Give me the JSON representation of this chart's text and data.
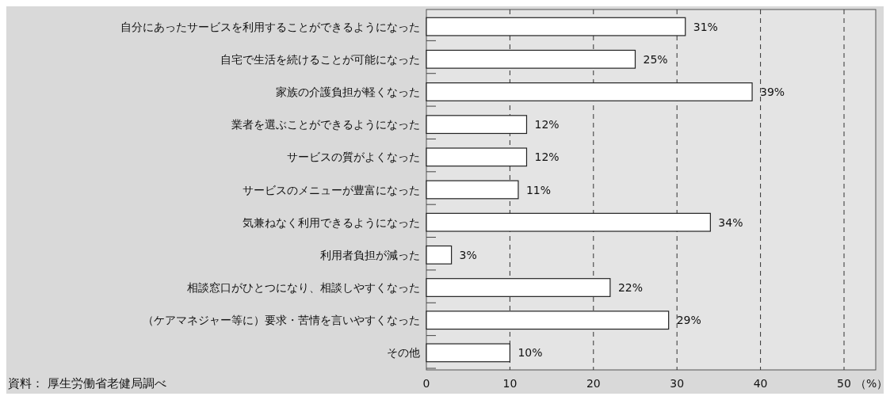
{
  "chart_data": {
    "type": "bar",
    "orientation": "horizontal",
    "categories": [
      "自分にあったサービスを利用することができるようになった",
      "自宅で生活を続けることが可能になった",
      "家族の介護負担が軽くなった",
      "業者を選ぶことができるようになった",
      "サービスの質がよくなった",
      "サービスのメニューが豊富になった",
      "気兼ねなく利用できるようになった",
      "利用者負担が減った",
      "相談窓口がひとつになり、相談しやすくなった",
      "（ケアマネジャー等に）要求・苦情を言いやすくなった",
      "その他"
    ],
    "values": [
      31,
      25,
      39,
      12,
      12,
      11,
      34,
      3,
      22,
      29,
      10
    ],
    "value_labels": [
      "31%",
      "25%",
      "39%",
      "12%",
      "12%",
      "11%",
      "34%",
      "3%",
      "22%",
      "29%",
      "10%"
    ],
    "color": "#ffffff",
    "xlim": [
      0,
      50
    ],
    "xticks": [
      0,
      10,
      20,
      30,
      40,
      50
    ],
    "xlabel": "（%）",
    "grid": "x",
    "annotations": [
      "資料： 厚生労働省老健局調べ"
    ]
  }
}
